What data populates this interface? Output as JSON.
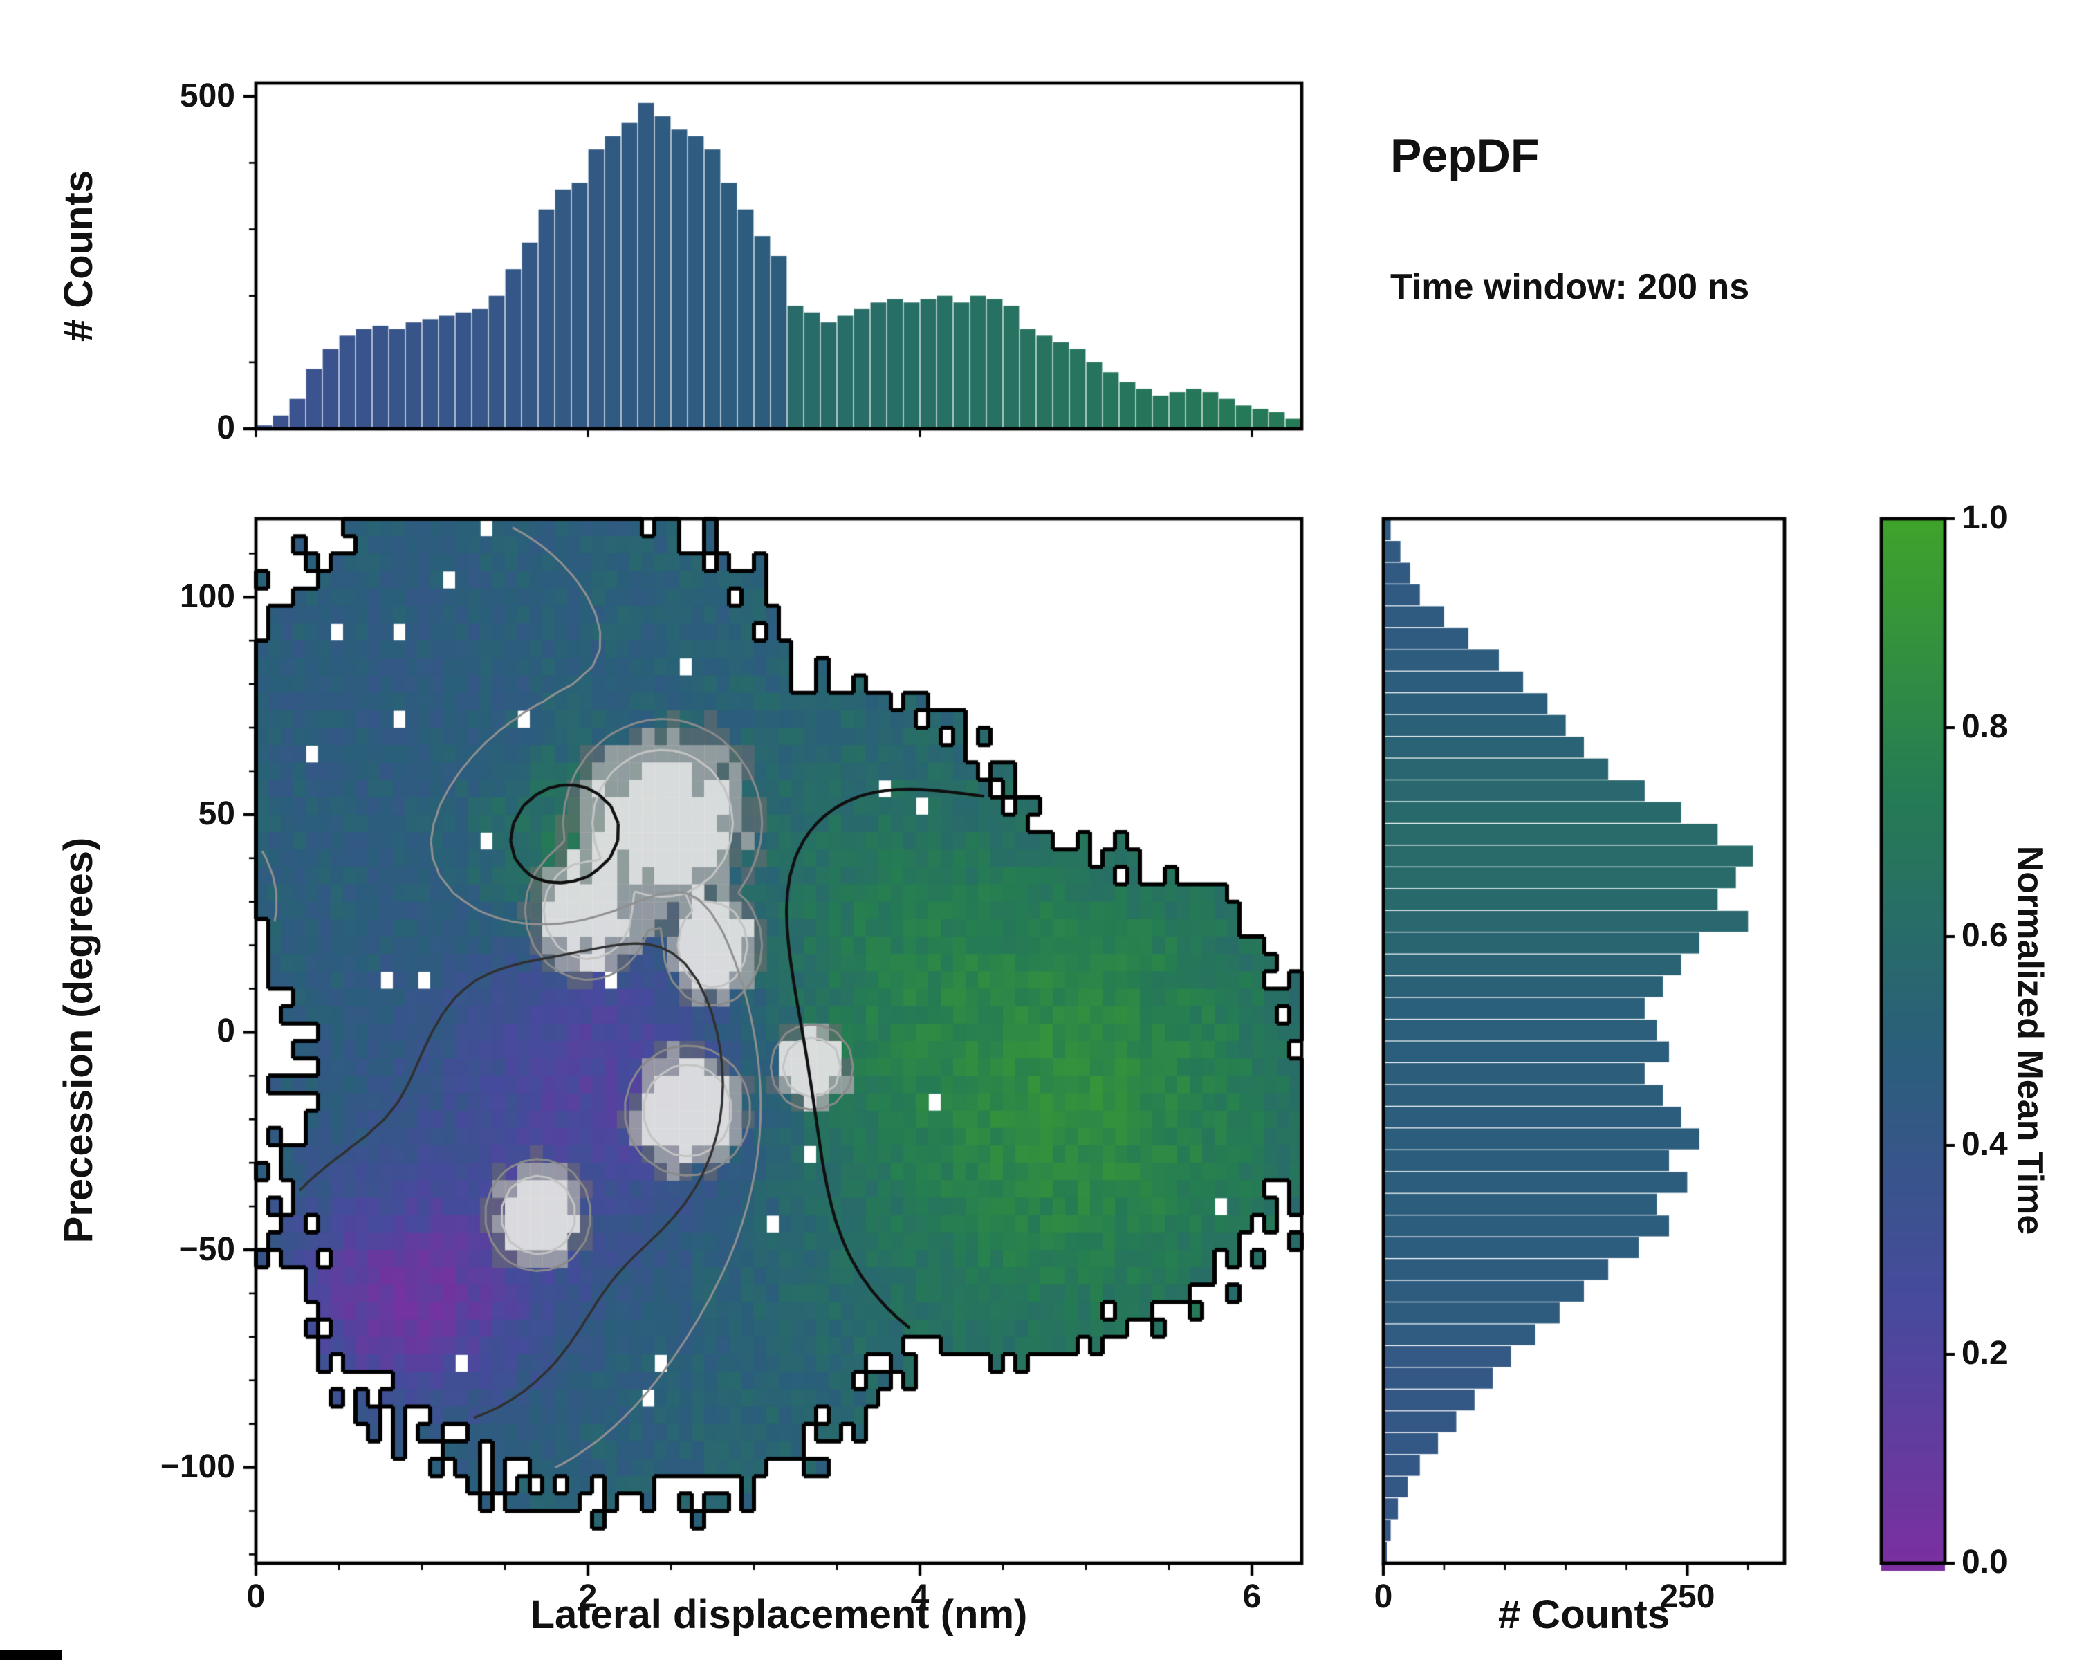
{
  "chart_data": {
    "type": "heatmap",
    "title": "PepDF",
    "annotation": "Time window: 200 ns",
    "xlabel": "Lateral displacement (nm)",
    "ylabel": "Precession (degrees)",
    "xlim": [
      0,
      6.3
    ],
    "ylim": [
      -122,
      118
    ],
    "x_ticks": [
      0,
      2,
      4,
      6
    ],
    "y_ticks": [
      100,
      50,
      0,
      -50,
      -100
    ],
    "grid": false,
    "colormap": {
      "positions": [
        0,
        0.25,
        0.5,
        0.75,
        1
      ],
      "colors": [
        "#7b2fa0",
        "#474a9d",
        "#2a5f7a",
        "#257d52",
        "#3fa32b"
      ]
    },
    "colorbar": {
      "label": "Normalized Mean Time",
      "ticks": [
        1,
        0.8,
        0.6,
        0.4,
        0.2,
        0
      ],
      "min": 0,
      "max": 1
    },
    "top_marginal": {
      "ylabel": "# Counts",
      "y_ticks": [
        0,
        500
      ],
      "ylim": [
        0,
        520
      ],
      "bin_start": 0,
      "bin_width": 0.1,
      "counts": [
        5,
        20,
        45,
        90,
        120,
        140,
        150,
        155,
        150,
        160,
        165,
        170,
        175,
        180,
        200,
        240,
        280,
        330,
        360,
        370,
        420,
        440,
        460,
        490,
        470,
        450,
        440,
        420,
        370,
        330,
        290,
        260,
        185,
        175,
        160,
        170,
        180,
        190,
        195,
        190,
        195,
        200,
        190,
        200,
        195,
        185,
        150,
        140,
        130,
        120,
        100,
        85,
        70,
        60,
        50,
        55,
        60,
        55,
        45,
        35,
        30,
        25,
        15
      ]
    },
    "right_marginal": {
      "xlabel": "# Counts",
      "x_ticks": [
        0,
        250
      ],
      "xlim": [
        0,
        330
      ],
      "bin_top": 118,
      "bin_width": 5,
      "counts": [
        6,
        14,
        22,
        30,
        50,
        70,
        95,
        115,
        135,
        150,
        165,
        185,
        215,
        245,
        275,
        304,
        290,
        275,
        300,
        260,
        245,
        230,
        215,
        225,
        235,
        215,
        230,
        245,
        260,
        235,
        250,
        225,
        235,
        210,
        185,
        165,
        145,
        125,
        105,
        90,
        75,
        60,
        45,
        30,
        20,
        12,
        6,
        3
      ]
    },
    "heatmap_model": {
      "seed": 11,
      "grid": {
        "nx": 84,
        "ny": 60,
        "x0": 0.0375,
        "dx": 0.075,
        "y0": 116,
        "dy": -4
      },
      "value_base": 0.52,
      "value_gaussians": [
        {
          "cx": 4.9,
          "cy": -15,
          "rx": 1.5,
          "ry": 60,
          "a": 0.33
        },
        {
          "cx": 1.85,
          "cy": 42,
          "rx": 0.55,
          "ry": 22,
          "a": 0.22
        },
        {
          "cx": 3.6,
          "cy": 25,
          "rx": 0.8,
          "ry": 40,
          "a": 0.1
        },
        {
          "cx": 0.9,
          "cy": -62,
          "rx": 0.8,
          "ry": 25,
          "a": -0.4
        },
        {
          "cx": 2.2,
          "cy": -8,
          "rx": 0.85,
          "ry": 38,
          "a": -0.28
        },
        {
          "cx": 1.3,
          "cy": -25,
          "rx": 1.2,
          "ry": 50,
          "a": -0.1
        },
        {
          "cx": 0.9,
          "cy": 80,
          "rx": 1.2,
          "ry": 40,
          "a": -0.06
        }
      ],
      "support_blobs": [
        {
          "cx": 1.6,
          "cy": 55,
          "rx": 1.9,
          "ry": 75
        },
        {
          "cx": 2.2,
          "cy": -35,
          "rx": 2.1,
          "ry": 75
        },
        {
          "cx": 4.4,
          "cy": -15,
          "rx": 2.1,
          "ry": 60
        },
        {
          "cx": 3.3,
          "cy": 25,
          "rx": 1.6,
          "ry": 55
        }
      ],
      "grey_blobs": [
        {
          "cx": 2.45,
          "cy": 48,
          "rx": 0.6,
          "ry": 24
        },
        {
          "cx": 2.0,
          "cy": 28,
          "rx": 0.38,
          "ry": 16
        },
        {
          "cx": 2.75,
          "cy": 20,
          "rx": 0.3,
          "ry": 14
        },
        {
          "cx": 2.6,
          "cy": -18,
          "rx": 0.38,
          "ry": 15
        },
        {
          "cx": 1.7,
          "cy": -42,
          "rx": 0.32,
          "ry": 13
        },
        {
          "cx": 3.35,
          "cy": -8,
          "rx": 0.25,
          "ry": 10
        }
      ],
      "contour_levels": [
        {
          "level": 0.5,
          "color": "#909090",
          "width": 1.5
        },
        {
          "level": 0.4,
          "color": "#303030",
          "width": 1.7
        },
        {
          "level": 0.62,
          "color": "#101010",
          "width": 2.2
        }
      ],
      "grey_contour_levels": [
        {
          "level": 0.0,
          "color": "#8a8a8a",
          "width": 1.5
        },
        {
          "level": 0.5,
          "color": "#c4c4c4",
          "width": 1.5
        }
      ],
      "hole_probability": 0.008
    },
    "bar_color_model": {
      "top": {
        "t0": 0.34,
        "slope": 0.045,
        "break_x": 3.25,
        "t1": 0.6,
        "slope2": 0.042
      },
      "right": {
        "base": 0.44,
        "peaks": [
          {
            "cy": 42,
            "ry": 32,
            "a": 0.16
          },
          {
            "cy": -30,
            "ry": 45,
            "a": 0.04
          }
        ]
      }
    }
  }
}
